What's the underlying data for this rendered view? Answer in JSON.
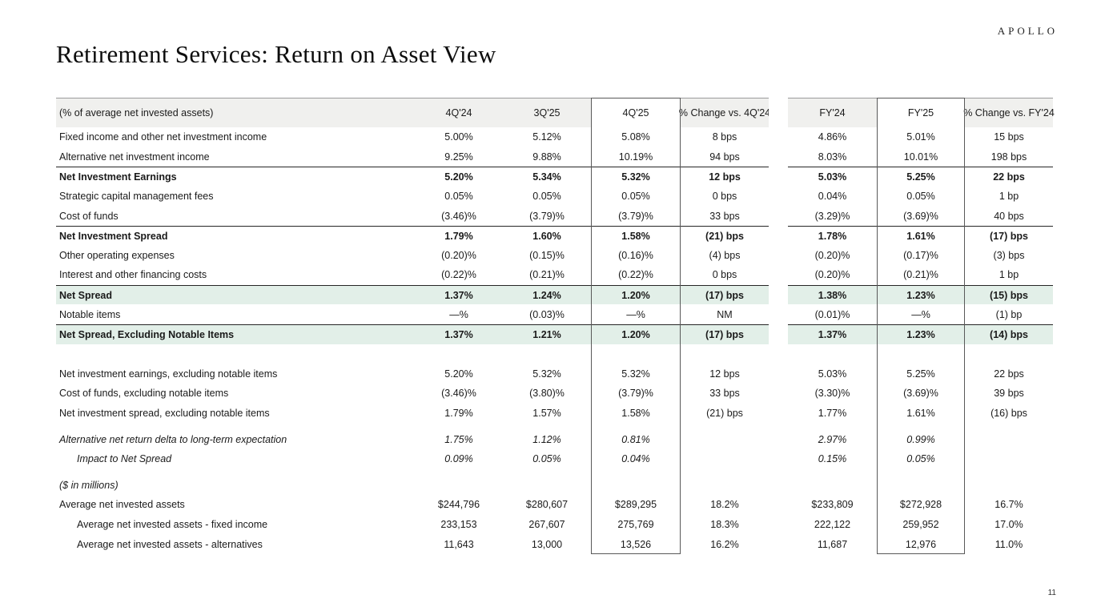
{
  "brand": {
    "logo_text": "APOLLO"
  },
  "page": {
    "title": "Retirement Services: Return on Asset View",
    "page_number": "11"
  },
  "colors": {
    "mint_row_bg": "#e2efe8",
    "header_bg": "#f0f0ee",
    "box_border": "#595959",
    "section_rule": "#262626",
    "header_rule": "#9b9b9b"
  },
  "table": {
    "header": {
      "label": "(% of average net invested assets)",
      "columns": [
        "4Q'24",
        "3Q'25",
        "4Q'25",
        "% Change vs. 4Q'24",
        "FY'24",
        "FY'25",
        "% Change vs. FY'24"
      ]
    },
    "rows": [
      {
        "label": "Fixed income and other net investment income",
        "values": [
          "5.00%",
          "5.12%",
          "5.08%",
          "8 bps",
          "4.86%",
          "5.01%",
          "15 bps"
        ]
      },
      {
        "label": "Alternative net investment income",
        "values": [
          "9.25%",
          "9.88%",
          "10.19%",
          "94 bps",
          "8.03%",
          "10.01%",
          "198 bps"
        ]
      },
      {
        "label": "Net Investment Earnings",
        "values": [
          "5.20%",
          "5.34%",
          "5.32%",
          "12 bps",
          "5.03%",
          "5.25%",
          "22 bps"
        ],
        "bold": true,
        "rule": true
      },
      {
        "label": "Strategic capital management fees",
        "values": [
          "0.05%",
          "0.05%",
          "0.05%",
          "0 bps",
          "0.04%",
          "0.05%",
          "1 bp"
        ]
      },
      {
        "label": "Cost of funds",
        "values": [
          "(3.46)%",
          "(3.79)%",
          "(3.79)%",
          "33 bps",
          "(3.29)%",
          "(3.69)%",
          "40 bps"
        ]
      },
      {
        "label": "Net Investment Spread",
        "values": [
          "1.79%",
          "1.60%",
          "1.58%",
          "(21) bps",
          "1.78%",
          "1.61%",
          "(17) bps"
        ],
        "bold": true,
        "rule": true
      },
      {
        "label": "Other operating expenses",
        "values": [
          "(0.20)%",
          "(0.15)%",
          "(0.16)%",
          "(4) bps",
          "(0.20)%",
          "(0.17)%",
          "(3) bps"
        ]
      },
      {
        "label": "Interest and other financing costs",
        "values": [
          "(0.22)%",
          "(0.21)%",
          "(0.22)%",
          "0 bps",
          "(0.20)%",
          "(0.21)%",
          "1 bp"
        ]
      },
      {
        "label": "Net Spread",
        "values": [
          "1.37%",
          "1.24%",
          "1.20%",
          "(17) bps",
          "1.38%",
          "1.23%",
          "(15) bps"
        ],
        "bold": true,
        "rule": true,
        "mint": true
      },
      {
        "label": "Notable items",
        "values": [
          "—%",
          "(0.03)%",
          "—%",
          "NM",
          "(0.01)%",
          "—%",
          "(1) bp"
        ]
      },
      {
        "label": "Net Spread, Excluding Notable Items",
        "values": [
          "1.37%",
          "1.21%",
          "1.20%",
          "(17) bps",
          "1.37%",
          "1.23%",
          "(14) bps"
        ],
        "bold": true,
        "rule": true,
        "mint": true
      },
      {
        "spacer": 25
      },
      {
        "label": "Net investment earnings, excluding notable items",
        "values": [
          "5.20%",
          "5.32%",
          "5.32%",
          "12 bps",
          "5.03%",
          "5.25%",
          "22 bps"
        ]
      },
      {
        "label": "Cost of funds, excluding notable items",
        "values": [
          "(3.46)%",
          "(3.80)%",
          "(3.79)%",
          "33 bps",
          "(3.30)%",
          "(3.69)%",
          "39 bps"
        ]
      },
      {
        "label": "Net investment spread, excluding notable items",
        "values": [
          "1.79%",
          "1.57%",
          "1.58%",
          "(21) bps",
          "1.77%",
          "1.61%",
          "(16) bps"
        ]
      },
      {
        "spacer": 8
      },
      {
        "label": "Alternative net return delta to long-term expectation",
        "values": [
          "1.75%",
          "1.12%",
          "0.81%",
          "",
          "2.97%",
          "0.99%",
          ""
        ],
        "italic": true
      },
      {
        "label": "Impact to Net Spread",
        "values": [
          "0.09%",
          "0.05%",
          "0.04%",
          "",
          "0.15%",
          "0.05%",
          ""
        ],
        "italic": true,
        "indent": true
      },
      {
        "spacer": 8
      },
      {
        "label": "($ in millions)",
        "values": [
          "",
          "",
          "",
          "",
          "",
          "",
          ""
        ],
        "italic": true
      },
      {
        "label": "Average net invested assets",
        "values": [
          "$244,796",
          "$280,607",
          "$289,295",
          "18.2%",
          "$233,809",
          "$272,928",
          "16.7%"
        ]
      },
      {
        "label": "Average net invested assets - fixed income",
        "values": [
          "233,153",
          "267,607",
          "275,769",
          "18.3%",
          "222,122",
          "259,952",
          "17.0%"
        ],
        "indent": true
      },
      {
        "label": "Average net invested assets - alternatives",
        "values": [
          "11,643",
          "13,000",
          "13,526",
          "16.2%",
          "11,687",
          "12,976",
          "11.0%"
        ],
        "indent": true
      }
    ]
  }
}
